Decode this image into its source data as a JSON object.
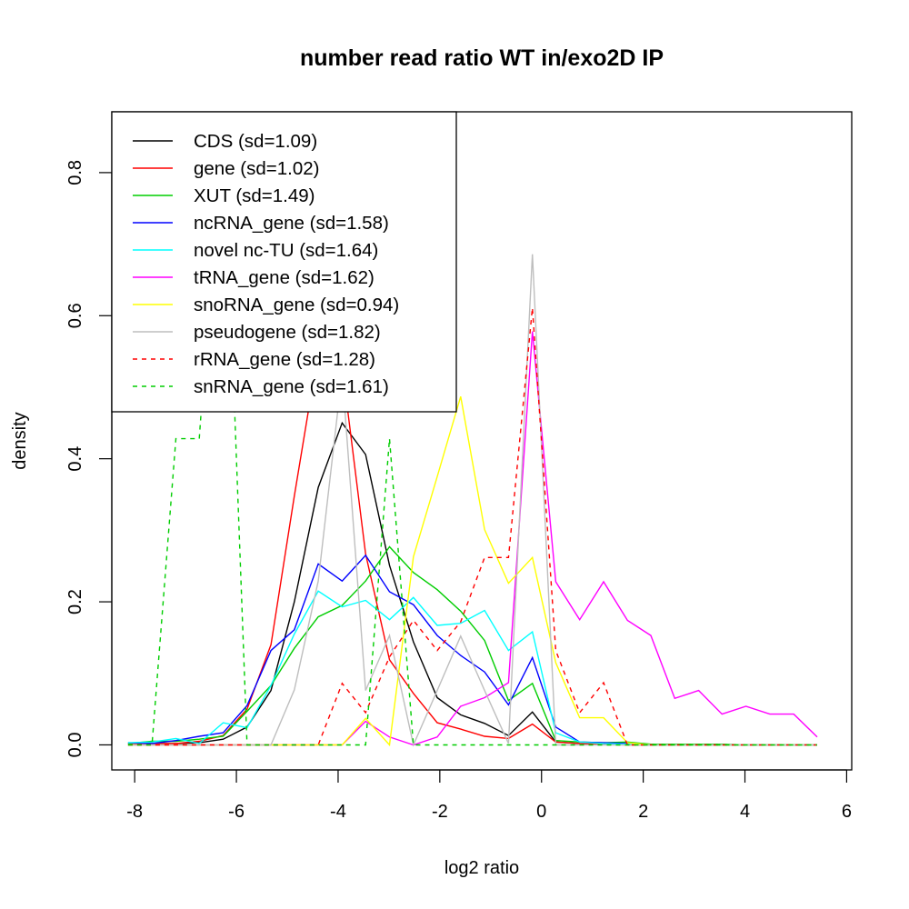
{
  "chart_data": {
    "type": "line",
    "title": "number read ratio WT in/exo2D IP",
    "xlabel": "log2 ratio",
    "ylabel": "density",
    "xlim": [
      -8.45,
      6.1
    ],
    "ylim": [
      -0.035,
      0.885
    ],
    "xticks": [
      -8,
      -6,
      -4,
      -2,
      0,
      2,
      4,
      6
    ],
    "xtick_labels": [
      "-8",
      "-6",
      "-4",
      "-2",
      "0",
      "2",
      "4",
      "6"
    ],
    "yticks": [
      0.0,
      0.2,
      0.4,
      0.6,
      0.8
    ],
    "ytick_labels": [
      "0.0",
      "0.2",
      "0.4",
      "0.6",
      "0.8"
    ],
    "grid": false,
    "legend_position": "top-left",
    "x": [
      -8.13,
      -7.66,
      -7.19,
      -6.73,
      -6.26,
      -5.79,
      -5.32,
      -4.86,
      -4.39,
      -3.92,
      -3.46,
      -2.99,
      -2.52,
      -2.05,
      -1.59,
      -1.12,
      -0.65,
      -0.18,
      0.28,
      0.75,
      1.22,
      1.69,
      2.15,
      2.62,
      3.09,
      3.55,
      4.02,
      4.49,
      4.96,
      5.42
    ],
    "series": [
      {
        "name": "CDS (sd=1.09)",
        "color": "#000000",
        "dash": false,
        "values": [
          0.002,
          0.002,
          0.002,
          0.003,
          0.008,
          0.025,
          0.076,
          0.2,
          0.36,
          0.45,
          0.406,
          0.251,
          0.144,
          0.066,
          0.042,
          0.03,
          0.013,
          0.046,
          0.004,
          0.002,
          0.001,
          0.001,
          0.0,
          0.0,
          0.0,
          0.0,
          0.0,
          0.0,
          0.0,
          0.0
        ]
      },
      {
        "name": "gene (sd=1.02)",
        "color": "#ff0000",
        "dash": false,
        "values": [
          0.002,
          0.002,
          0.002,
          0.005,
          0.013,
          0.05,
          0.14,
          0.348,
          0.55,
          0.53,
          0.267,
          0.119,
          0.072,
          0.031,
          0.022,
          0.012,
          0.009,
          0.029,
          0.004,
          0.002,
          0.001,
          0.0,
          0.0,
          0.0,
          0.0,
          0.0,
          0.0,
          0.0,
          0.0,
          0.0
        ]
      },
      {
        "name": "XUT (sd=1.49)",
        "color": "#00cd00",
        "dash": false,
        "values": [
          0.002,
          0.005,
          0.005,
          0.008,
          0.012,
          0.047,
          0.083,
          0.135,
          0.179,
          0.195,
          0.229,
          0.277,
          0.241,
          0.217,
          0.187,
          0.146,
          0.062,
          0.086,
          0.006,
          0.004,
          0.003,
          0.004,
          0.001,
          0.001,
          0.001,
          0.001,
          0.0,
          0.0,
          0.0,
          0.0
        ]
      },
      {
        "name": "ncRNA_gene (sd=1.58)",
        "color": "#0000ff",
        "dash": false,
        "values": [
          0.003,
          0.002,
          0.006,
          0.012,
          0.017,
          0.055,
          0.132,
          0.161,
          0.253,
          0.229,
          0.265,
          0.214,
          0.196,
          0.153,
          0.125,
          0.102,
          0.056,
          0.122,
          0.025,
          0.004,
          0.003,
          0.002,
          0.0,
          0.0,
          0.0,
          0.0,
          0.0,
          0.0,
          0.0,
          0.0
        ]
      },
      {
        "name": "novel nc-TU (sd=1.64)",
        "color": "#00ffff",
        "dash": false,
        "values": [
          0.003,
          0.004,
          0.009,
          0.002,
          0.031,
          0.024,
          0.083,
          0.155,
          0.215,
          0.193,
          0.202,
          0.175,
          0.206,
          0.167,
          0.17,
          0.188,
          0.132,
          0.158,
          0.017,
          0.004,
          0.002,
          0.001,
          0.0,
          0.0,
          0.0,
          0.0,
          0.0,
          0.0,
          0.0,
          0.0
        ]
      },
      {
        "name": "tRNA_gene (sd=1.62)",
        "color": "#ff00ff",
        "dash": false,
        "values": [
          0.0,
          0.0,
          0.0,
          0.0,
          0.0,
          0.0,
          0.0,
          0.0,
          0.0,
          0.0,
          0.033,
          0.011,
          0.0,
          0.011,
          0.054,
          0.066,
          0.087,
          0.578,
          0.228,
          0.175,
          0.228,
          0.174,
          0.153,
          0.065,
          0.076,
          0.043,
          0.054,
          0.043,
          0.043,
          0.011
        ]
      },
      {
        "name": "snoRNA_gene (sd=0.94)",
        "color": "#ffff00",
        "dash": false,
        "values": [
          0.0,
          0.0,
          0.0,
          0.0,
          0.0,
          0.0,
          0.0,
          0.0,
          0.0,
          0.0,
          0.037,
          0.0,
          0.263,
          0.375,
          0.487,
          0.301,
          0.226,
          0.262,
          0.115,
          0.038,
          0.038,
          0.003,
          0.0,
          0.0,
          0.0,
          0.0,
          0.0,
          0.0,
          0.0,
          0.0
        ]
      },
      {
        "name": "pseudogene (sd=1.82)",
        "color": "#bebebe",
        "dash": false,
        "values": [
          0.0,
          0.0,
          0.0,
          0.0,
          0.0,
          0.0,
          0.0,
          0.077,
          0.229,
          0.52,
          0.076,
          0.153,
          0.0,
          0.076,
          0.152,
          0.076,
          0.002,
          0.686,
          0.0,
          0.0,
          0.0,
          0.0,
          0.0,
          0.0,
          0.0,
          0.0,
          0.0,
          0.0,
          0.0,
          0.0
        ]
      },
      {
        "name": "rRNA_gene (sd=1.28)",
        "color": "#ff0000",
        "dash": true,
        "values": [
          0.0,
          0.0,
          0.0,
          0.0,
          0.0,
          0.0,
          0.0,
          0.0,
          0.0,
          0.086,
          0.045,
          0.123,
          0.174,
          0.132,
          0.172,
          0.262,
          0.262,
          0.611,
          0.132,
          0.045,
          0.087,
          0.0,
          0.0,
          0.0,
          0.0,
          0.0,
          0.0,
          0.0,
          0.0,
          0.0
        ]
      },
      {
        "name": "snRNA_gene (sd=1.61)",
        "color": "#00cd00",
        "dash": true,
        "values": [
          0.0,
          0.0,
          0.428,
          0.428,
          0.9,
          0.0,
          0.0,
          0.0,
          0.0,
          0.0,
          0.0,
          0.428,
          0.0,
          0.0,
          0.0,
          0.0,
          0.0,
          0.0,
          0.0,
          0.0,
          0.0,
          0.0,
          0.0,
          0.0,
          0.0,
          0.0,
          0.0,
          0.0,
          0.0,
          0.0
        ]
      }
    ]
  }
}
